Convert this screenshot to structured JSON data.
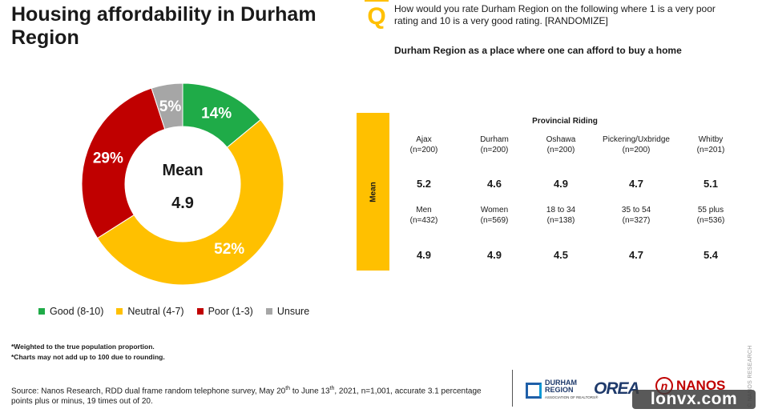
{
  "title": "Housing affordability in Durham Region",
  "question_mark": "Q",
  "question_text": "How would you rate Durham Region on the following where 1 is a very poor rating and 10 is a very good rating. [RANDOMIZE]",
  "sub_question": "Durham Region as a place where one can afford to buy a home",
  "donut_center": {
    "label": "Mean",
    "value": "4.9"
  },
  "chart_data": [
    {
      "type": "pie",
      "title": "",
      "donut": true,
      "slices": [
        {
          "name": "Good (8-10)",
          "value": 14,
          "label": "14%",
          "color": "#1fab48"
        },
        {
          "name": "Neutral (4-7)",
          "value": 52,
          "label": "52%",
          "color": "#ffc000"
        },
        {
          "name": "Poor (1-3)",
          "value": 29,
          "label": "29%",
          "color": "#c00000"
        },
        {
          "name": "Unsure",
          "value": 5,
          "label": "5%",
          "color": "#a6a6a6"
        }
      ]
    },
    {
      "type": "table",
      "title": "Mean",
      "header": "Provincial Riding",
      "rows": [
        {
          "groups": [
            {
              "label": "Ajax",
              "n": "(n=200)",
              "value": "5.2"
            },
            {
              "label": "Durham",
              "n": "(n=200)",
              "value": "4.6"
            },
            {
              "label": "Oshawa",
              "n": "(n=200)",
              "value": "4.9"
            },
            {
              "label": "Pickering/Uxbridge",
              "n": "(n=200)",
              "value": "4.7"
            },
            {
              "label": "Whitby",
              "n": "(n=201)",
              "value": "5.1"
            }
          ]
        },
        {
          "groups": [
            {
              "label": "Men",
              "n": "(n=432)",
              "value": "4.9"
            },
            {
              "label": "Women",
              "n": "(n=569)",
              "value": "4.9"
            },
            {
              "label": "18 to 34",
              "n": "(n=138)",
              "value": "4.5"
            },
            {
              "label": "35 to 54",
              "n": "(n=327)",
              "value": "4.7"
            },
            {
              "label": "55 plus",
              "n": "(n=536)",
              "value": "5.4"
            }
          ]
        }
      ]
    }
  ],
  "notes": [
    "*Weighted to the true population proportion.",
    "*Charts may not add up to 100 due to rounding."
  ],
  "source": {
    "prefix": "Source: Nanos Research, RDD dual frame random telephone survey, May 20",
    "sup1": "th",
    "middle": " to June 13",
    "sup2": "th",
    "suffix": ",  2021, n=1,001, accurate 3.1 percentage points plus or minus, 19 times out of 20."
  },
  "logos": {
    "durham_line1": "DURHAM",
    "durham_line2": "REGION",
    "durham_sub": "ASSOCIATION OF REALTORS®",
    "orea": "OREA",
    "nanos_mark": "n",
    "nanos": "NANOS",
    "vertical": "© NANOS RESEARCH"
  },
  "watermark": "lonvx.com"
}
